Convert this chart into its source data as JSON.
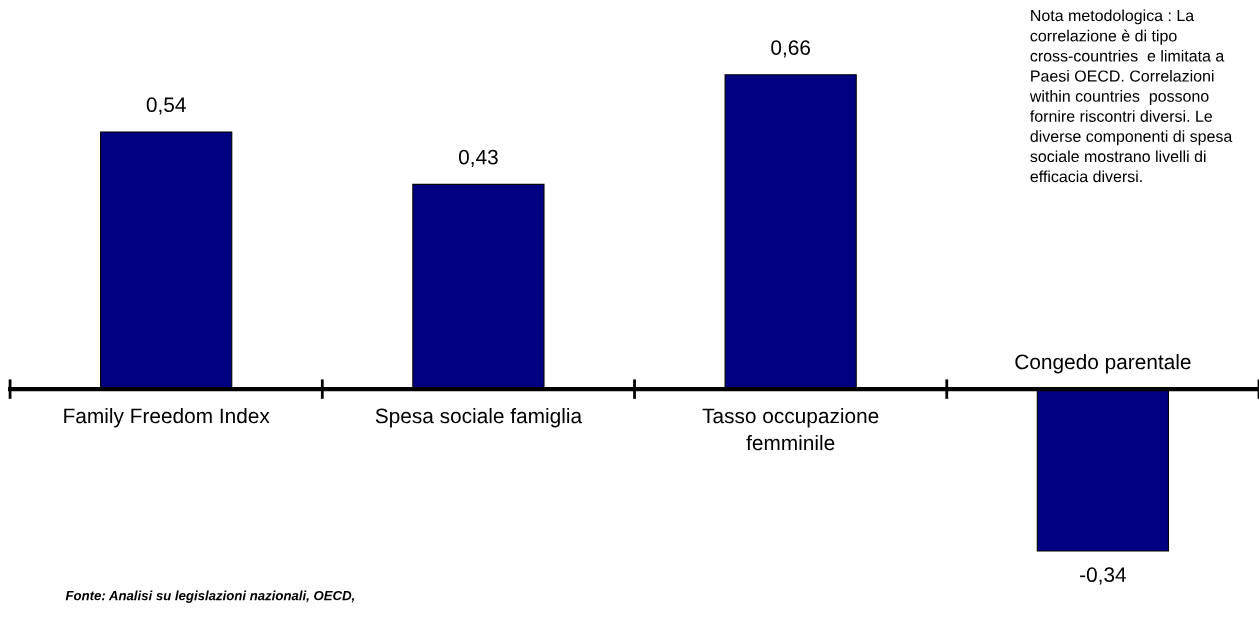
{
  "chart_data": {
    "type": "bar",
    "categories": [
      "Family Freedom Index",
      "Spesa sociale famiglia",
      "Tasso occupazione\nfemminile",
      "Congedo parentale"
    ],
    "values": [
      0.54,
      0.43,
      0.66,
      -0.34
    ],
    "value_labels": [
      "0,54",
      "0,43",
      "0,66",
      "-0,34"
    ],
    "color": "#000080",
    "grid": false,
    "annotations": [
      "Nota metodologica : La correlazione è di tipo cross-countries  e limitata a Paesi OECD. Correlazioni within countries  possono fornire riscontri diversi. Le diverse componenti di spesa sociale mostrano livelli di efficacia diversi.",
      "Fonte: Analisi su legislazioni nazionali, OECD,"
    ]
  }
}
